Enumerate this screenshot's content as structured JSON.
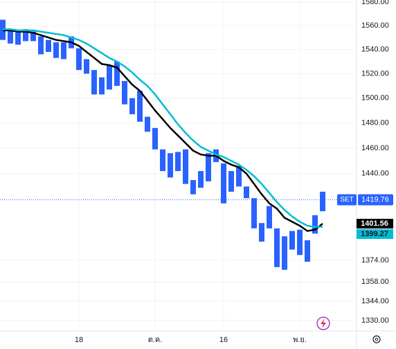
{
  "chart_data": {
    "type": "candlestick",
    "symbol": "SET",
    "last_price": 1419.76,
    "color": "#2962ff",
    "low": [
      1548,
      1545,
      1544,
      1547,
      1547,
      1536,
      1538,
      1533,
      1532,
      1541,
      1523,
      1520,
      1503,
      1503,
      1507,
      1510,
      1495,
      1487,
      1481,
      1473,
      1459,
      1442,
      1437,
      1442,
      1432,
      1424,
      1429,
      1434,
      1449,
      1417,
      1426,
      1430,
      1421,
      1398,
      1388,
      1398,
      1369,
      1367,
      1382,
      1378,
      1373,
      1394,
      1411
    ],
    "high": [
      1565,
      1557,
      1556,
      1557,
      1555,
      1551,
      1548,
      1546,
      1546,
      1551,
      1541,
      1532,
      1523,
      1517,
      1527,
      1530,
      1514,
      1500,
      1506,
      1485,
      1476,
      1459,
      1456,
      1457,
      1459,
      1435,
      1442,
      1456,
      1459,
      1448,
      1442,
      1446,
      1430,
      1421,
      1402,
      1415,
      1398,
      1392,
      1396,
      1397,
      1389,
      1408,
      1426
    ],
    "categories": [
      null,
      null,
      null,
      null,
      null,
      null,
      null,
      null,
      null,
      null,
      "18",
      null,
      null,
      null,
      null,
      null,
      null,
      null,
      null,
      null,
      "ต.ค.",
      null,
      null,
      null,
      null,
      null,
      null,
      null,
      null,
      "16",
      null,
      null,
      null,
      null,
      null,
      null,
      null,
      null,
      null,
      "พ.ย.",
      null,
      null,
      null
    ],
    "lines": [
      {
        "color": "#000000",
        "values": [
          1556,
          1556,
          1555,
          1555,
          1554,
          1552,
          1550,
          1548,
          1547,
          1546,
          1543,
          1538,
          1533,
          1528,
          1527,
          1525,
          1518,
          1511,
          1506,
          1498,
          1490,
          1483,
          1476,
          1470,
          1464,
          1458,
          1455,
          1454,
          1454,
          1450,
          1447,
          1445,
          1440,
          1432,
          1424,
          1417,
          1413,
          1406,
          1403,
          1400,
          1396,
          1397,
          1401.56
        ]
      },
      {
        "color": "#00bcd4",
        "values": [
          1557,
          1557,
          1556,
          1556,
          1556,
          1555,
          1554,
          1553,
          1552,
          1550,
          1548,
          1545,
          1541,
          1537,
          1533,
          1530,
          1526,
          1521,
          1515,
          1510,
          1503,
          1495,
          1487,
          1479,
          1472,
          1466,
          1461,
          1458,
          1455,
          1453,
          1450,
          1447,
          1443,
          1438,
          1432,
          1425,
          1418,
          1412,
          1407,
          1403,
          1400,
          1399,
          1399.27
        ]
      }
    ],
    "ylim": [
      1322.5,
      1581.8
    ],
    "log_scale": true,
    "grid": true,
    "yticks": [
      {
        "value": 1580,
        "label": "1580.00"
      },
      {
        "value": 1560,
        "label": "1560.00"
      },
      {
        "value": 1540,
        "label": "1540.00"
      },
      {
        "value": 1520,
        "label": "1520.00"
      },
      {
        "value": 1500,
        "label": "1500.00"
      },
      {
        "value": 1480,
        "label": "1480.00"
      },
      {
        "value": 1460,
        "label": "1460.00"
      },
      {
        "value": 1440,
        "label": "1440.00"
      },
      {
        "value": 1374,
        "label": "1374.00"
      },
      {
        "value": 1358,
        "label": "1358.00"
      },
      {
        "value": 1344,
        "label": "1344.00"
      },
      {
        "value": 1330,
        "label": "1330.00"
      }
    ]
  }
}
